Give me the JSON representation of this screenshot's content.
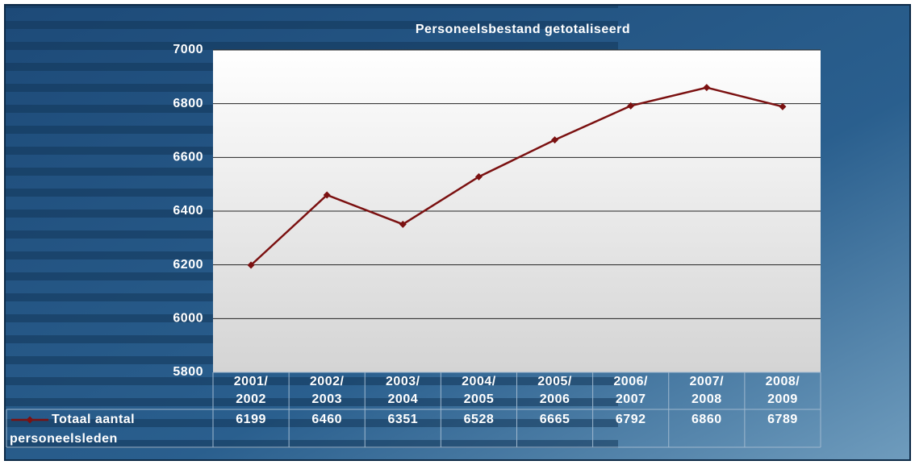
{
  "chart_data": {
    "type": "line",
    "title": "Personeelsbestand getotaliseerd",
    "categories": [
      "2001/ 2002",
      "2002/ 2003",
      "2003/ 2004",
      "2004/ 2005",
      "2005/ 2006",
      "2006/ 2007",
      "2007/ 2008",
      "2008/ 2009"
    ],
    "series": [
      {
        "name": "Totaal aantal personeelsleden",
        "color": "#7b1111",
        "values": [
          6199,
          6460,
          6351,
          6528,
          6665,
          6792,
          6860,
          6789
        ]
      }
    ],
    "ylim": [
      5800,
      7000
    ],
    "yticks": [
      5800,
      6000,
      6200,
      6400,
      6600,
      6800,
      7000
    ],
    "grid": true,
    "data_table": true
  }
}
